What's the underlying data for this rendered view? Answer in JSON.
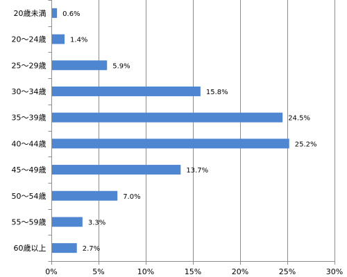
{
  "chart_data": {
    "type": "bar",
    "orientation": "horizontal",
    "categories": [
      "20歳未満",
      "20～24歳",
      "25～29歳",
      "30～34歳",
      "35～39歳",
      "40～44歳",
      "45～49歳",
      "50～54歳",
      "55～59歳",
      "60歳以上"
    ],
    "values": [
      0.6,
      1.4,
      5.9,
      15.8,
      24.5,
      25.2,
      13.7,
      7.0,
      3.3,
      2.7
    ],
    "data_labels": [
      "0.6%",
      "1.4%",
      "5.9%",
      "15.8%",
      "24.5%",
      "25.2%",
      "13.7%",
      "7.0%",
      "3.3%",
      "2.7%"
    ],
    "xlim": [
      0,
      30
    ],
    "xticks": [
      0,
      5,
      10,
      15,
      20,
      25,
      30
    ],
    "xtick_labels": [
      "0%",
      "5%",
      "10%",
      "15%",
      "20%",
      "25%",
      "30%"
    ],
    "title": "",
    "xlabel": "",
    "ylabel": "",
    "grid": "vertical",
    "legend": "none",
    "colors": {
      "bar": "#4f86d1",
      "grid": "#8c8c8c",
      "axis": "#8c8c8c"
    }
  }
}
